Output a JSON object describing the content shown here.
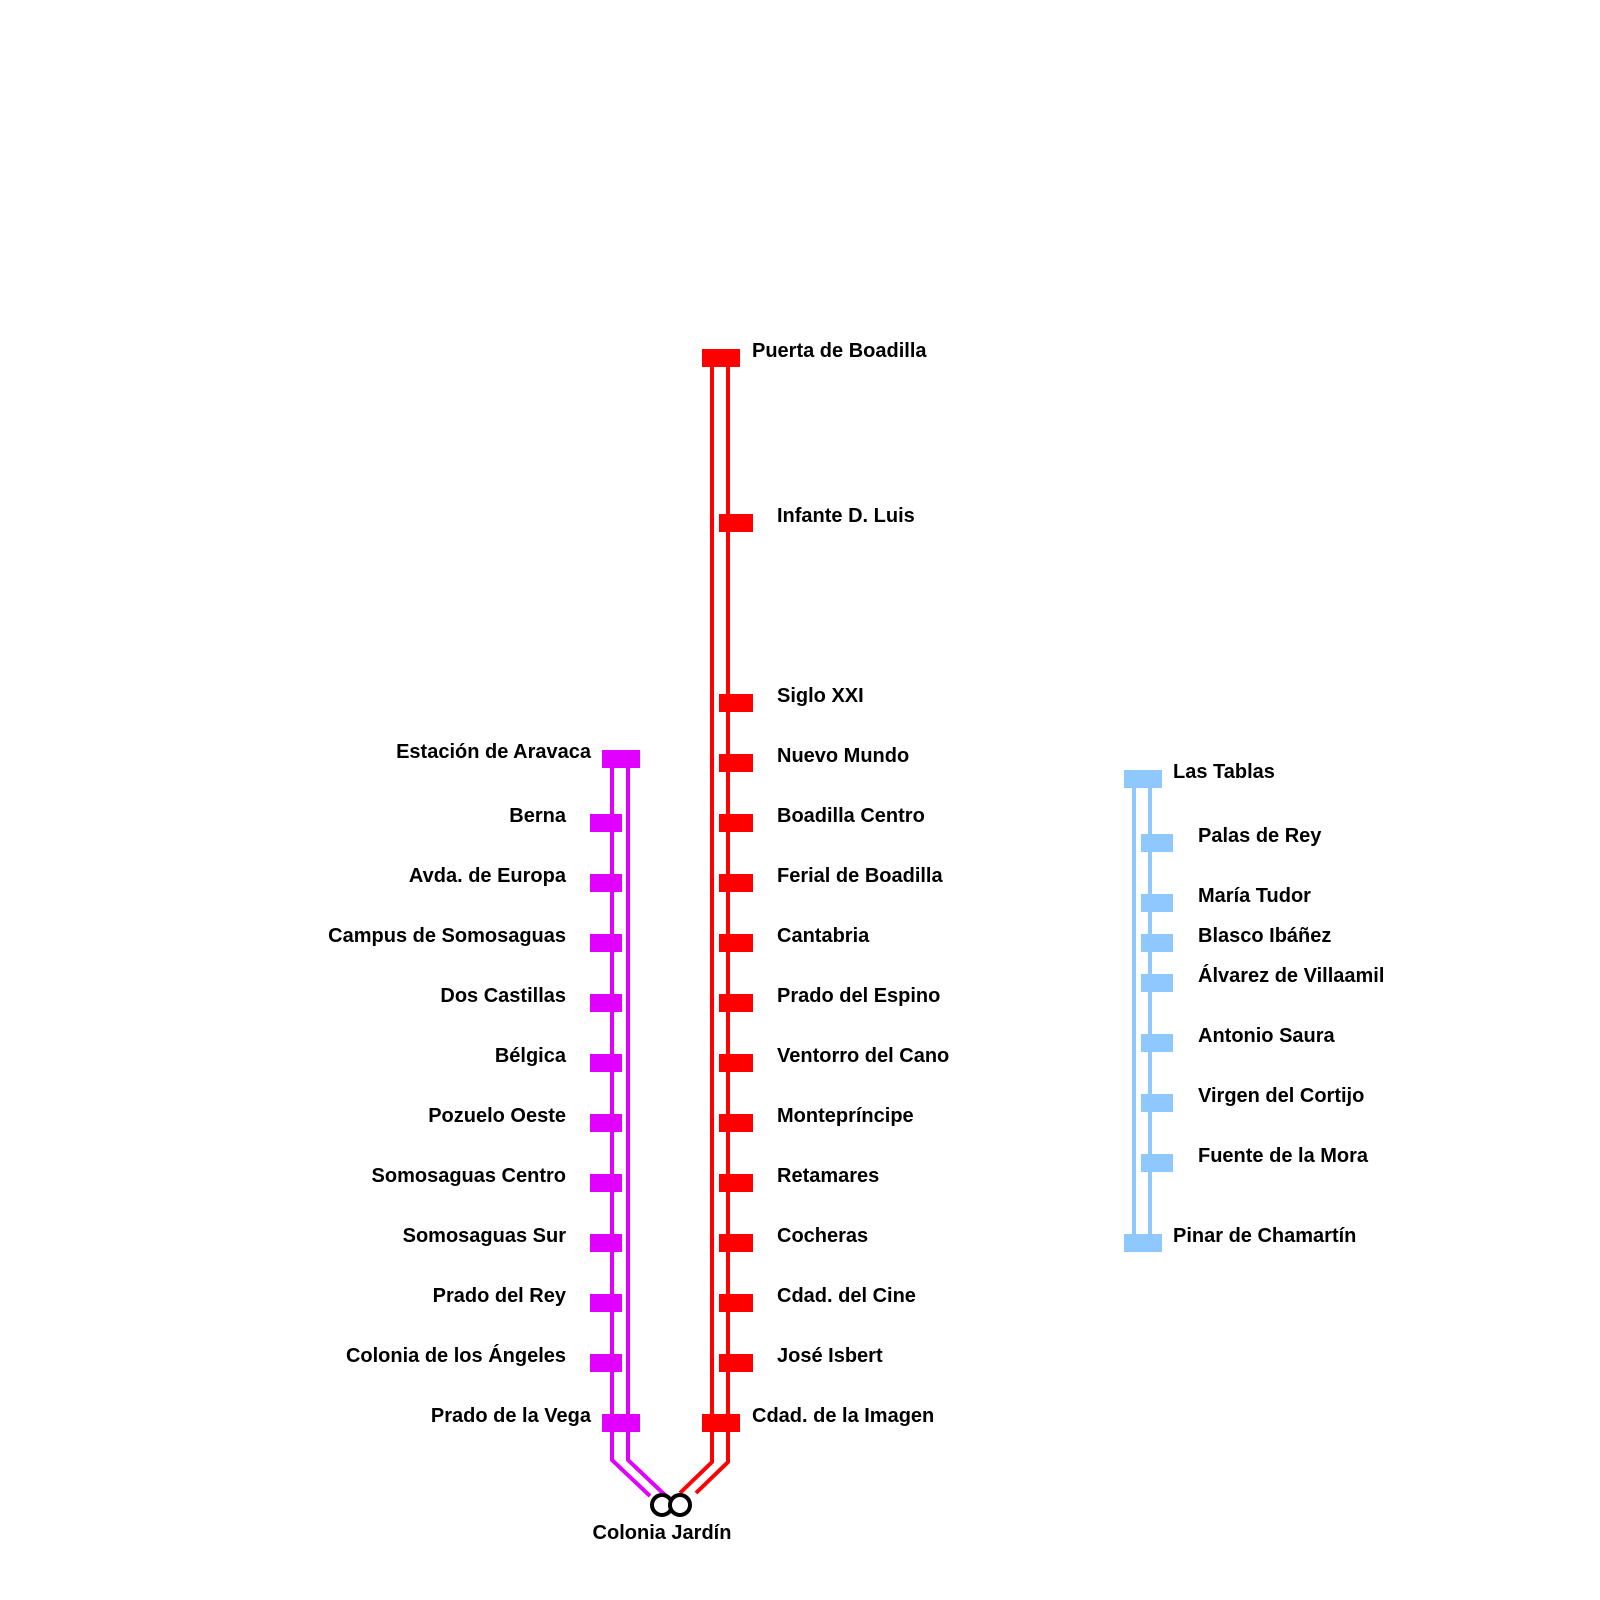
{
  "lines": {
    "red": {
      "color": "#ff0000",
      "stations": [
        "Puerta de Boadilla",
        "Infante D. Luis",
        "Siglo XXI",
        "Nuevo Mundo",
        "Boadilla Centro",
        "Ferial de Boadilla",
        "Cantabria",
        "Prado del Espino",
        "Ventorro del Cano",
        "Montepríncipe",
        "Retamares",
        "Cocheras",
        "Cdad. del Cine",
        "José Isbert",
        "Cdad. de la Imagen"
      ]
    },
    "magenta": {
      "color": "#e100ff",
      "stations": [
        "Estación de Aravaca",
        "Berna",
        "Avda. de Europa",
        "Campus de Somosaguas",
        "Dos Castillas",
        "Bélgica",
        "Pozuelo Oeste",
        "Somosaguas Centro",
        "Somosaguas Sur",
        "Prado del Rey",
        "Colonia de los Ángeles",
        "Prado de la Vega"
      ]
    },
    "blue": {
      "color": "#8fc8ff",
      "stations": [
        "Las Tablas",
        "Palas de Rey",
        "María Tudor",
        "Blasco Ibáñez",
        "Álvarez de Villaamil",
        "Antonio Saura",
        "Virgen del Cortijo",
        "Fuente de la Mora",
        "Pinar de Chamartín"
      ]
    }
  },
  "interchange": {
    "name": "Colonia Jardín",
    "icon": "interchange-icon"
  }
}
